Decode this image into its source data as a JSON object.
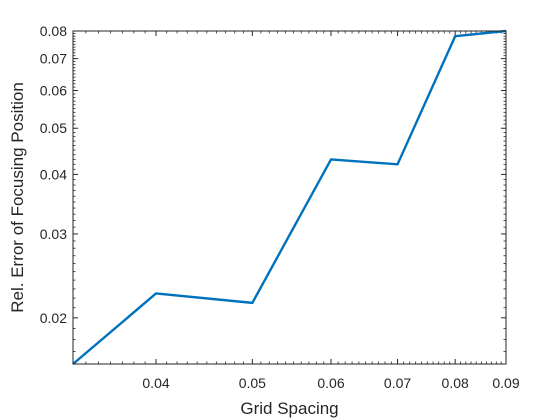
{
  "chart_data": {
    "type": "line",
    "xlabel": "Grid Spacing",
    "ylabel": "Rel. Error of Focusing Position",
    "xscale": "log",
    "yscale": "log",
    "xlim": [
      0.033,
      0.09
    ],
    "ylim": [
      0.016,
      0.08
    ],
    "xticks": [
      0.04,
      0.05,
      0.06,
      0.07,
      0.08,
      0.09
    ],
    "xtick_labels": [
      "0.04",
      "0.05",
      "0.06",
      "0.07",
      "0.08",
      "0.09"
    ],
    "yticks": [
      0.02,
      0.03,
      0.04,
      0.05,
      0.06,
      0.07,
      0.08
    ],
    "ytick_labels": [
      "0.02",
      "0.03",
      "0.04",
      "0.05",
      "0.06",
      "0.07",
      "0.08"
    ],
    "grid": false,
    "box": true,
    "line_color": "#0072BD",
    "series": [
      {
        "x": [
          0.033,
          0.04,
          0.05,
          0.06,
          0.07,
          0.08,
          0.09
        ],
        "y": [
          0.016,
          0.0225,
          0.0215,
          0.043,
          0.042,
          0.078,
          0.08
        ]
      }
    ]
  }
}
